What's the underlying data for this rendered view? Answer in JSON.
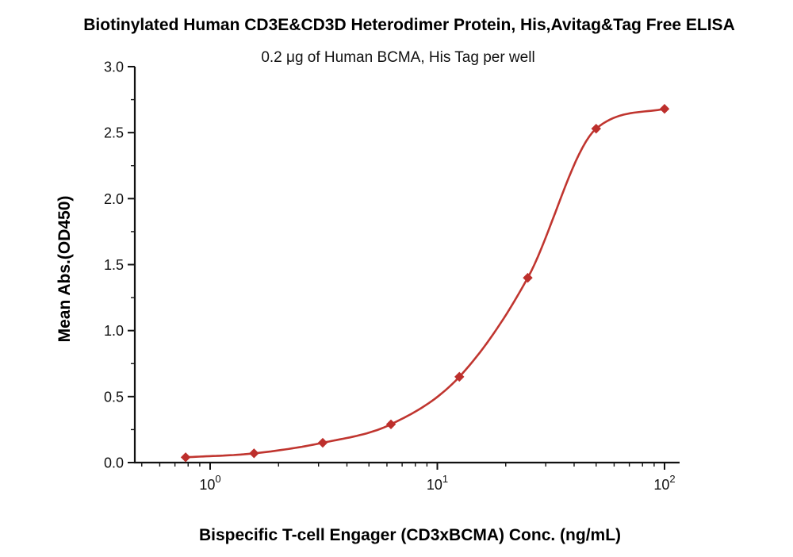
{
  "chart_data": {
    "type": "scatter",
    "title": "Biotinylated Human CD3E&CD3D Heterodimer Protein, His,Avitag&Tag Free ELISA",
    "subtitle": "0.2 μg of Human BCMA, His Tag per well",
    "xlabel": "Bispecific T-cell Engager (CD3xBCMA) Conc. (ng/mL)",
    "ylabel": "Mean Abs.(OD450)",
    "xscale": "log",
    "x": [
      0.78,
      1.56,
      3.13,
      6.25,
      12.5,
      25,
      50,
      100
    ],
    "y": [
      0.04,
      0.07,
      0.15,
      0.29,
      0.65,
      1.4,
      2.53,
      2.68
    ],
    "xlim": [
      0.466,
      117
    ],
    "ylim": [
      0,
      3
    ],
    "yticks": [
      0.0,
      0.5,
      1.0,
      1.5,
      2.0,
      2.5,
      3.0
    ],
    "xticks_exponents": [
      0,
      1,
      2
    ],
    "line_color": "#c0352f",
    "marker": "diamond",
    "marker_color": "#bd2f2c",
    "axis_color": "#111111",
    "legend": "none",
    "grid": "off",
    "fit": "sigmoidal dose-response curve through points"
  }
}
